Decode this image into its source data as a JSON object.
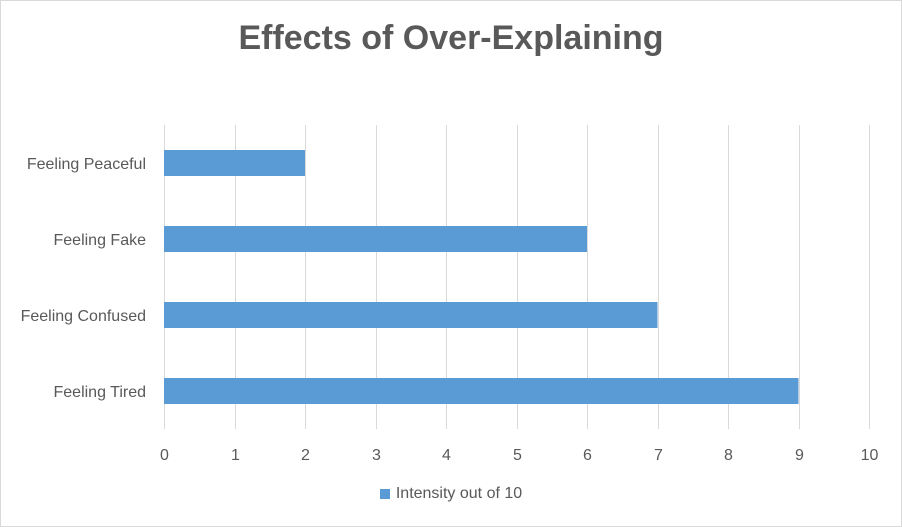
{
  "chart_data": {
    "type": "bar",
    "orientation": "horizontal",
    "title": "Effects of Over-Explaining",
    "categories": [
      "Feeling Peaceful",
      "Feeling Fake",
      "Feeling Confused",
      "Feeling Tired"
    ],
    "series": [
      {
        "name": "Intensity out of 10",
        "values": [
          2,
          6,
          7,
          9
        ],
        "color": "#5b9bd5"
      }
    ],
    "xlim": [
      0,
      10
    ],
    "xticks": [
      "0",
      "1",
      "2",
      "3",
      "4",
      "5",
      "6",
      "7",
      "8",
      "9",
      "10"
    ],
    "grid": true,
    "legend_position": "bottom"
  }
}
